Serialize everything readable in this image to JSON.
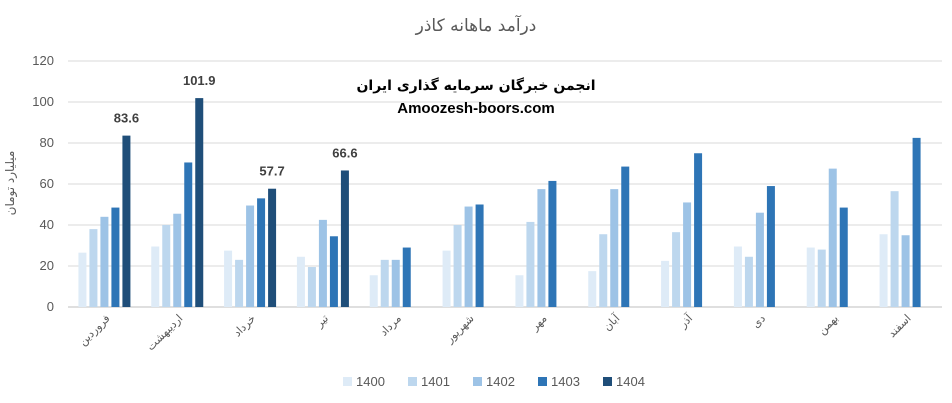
{
  "chart_data": {
    "type": "bar",
    "title": "درآمد ماهانه کاذر",
    "ylabel": "میلیارد تومان",
    "ylim": [
      0,
      120
    ],
    "yticks": [
      "0",
      "20",
      "40",
      "60",
      "80",
      "100",
      "120"
    ],
    "grid": true,
    "legend_position": "bottom",
    "categories": [
      "فروردین",
      "اردیبهشت",
      "خرداد",
      "تیر",
      "مرداد",
      "شهریور",
      "مهر",
      "آبان",
      "آذر",
      "دی",
      "بهمن",
      "اسفند"
    ],
    "series": [
      {
        "name": "1400",
        "color": "#deebf7",
        "values": [
          26.5,
          29.5,
          27.5,
          24.5,
          15.5,
          27.5,
          15.5,
          17.5,
          22.5,
          29.5,
          29,
          35.5
        ]
      },
      {
        "name": "1401",
        "color": "#bdd7ee",
        "values": [
          38,
          40,
          23,
          19.5,
          23,
          40,
          41.5,
          35.5,
          36.5,
          24.5,
          28,
          56.5
        ]
      },
      {
        "name": "1402",
        "color": "#9dc3e6",
        "values": [
          44,
          45.5,
          49.5,
          42.5,
          23,
          49,
          57.5,
          57.5,
          51,
          46,
          67.5,
          35
        ]
      },
      {
        "name": "1403",
        "color": "#2e75b6",
        "values": [
          48.5,
          70.5,
          53,
          34.5,
          29,
          50,
          61.5,
          68.5,
          75,
          59,
          48.5,
          82.5
        ]
      },
      {
        "name": "1404",
        "color": "#1f4e79",
        "values": [
          83.6,
          101.9,
          57.7,
          66.6,
          null,
          null,
          null,
          null,
          null,
          null,
          null,
          null
        ]
      }
    ],
    "data_labels": [
      {
        "category_index": 0,
        "series_index": 4,
        "text": "83.6"
      },
      {
        "category_index": 1,
        "series_index": 4,
        "text": "101.9"
      },
      {
        "category_index": 2,
        "series_index": 4,
        "text": "57.7"
      },
      {
        "category_index": 3,
        "series_index": 4,
        "text": "66.6"
      }
    ],
    "watermark": {
      "line1": "انجمن خبرگان سرمایه گذاری ایران",
      "line2": "Amoozesh-boors.com"
    }
  }
}
